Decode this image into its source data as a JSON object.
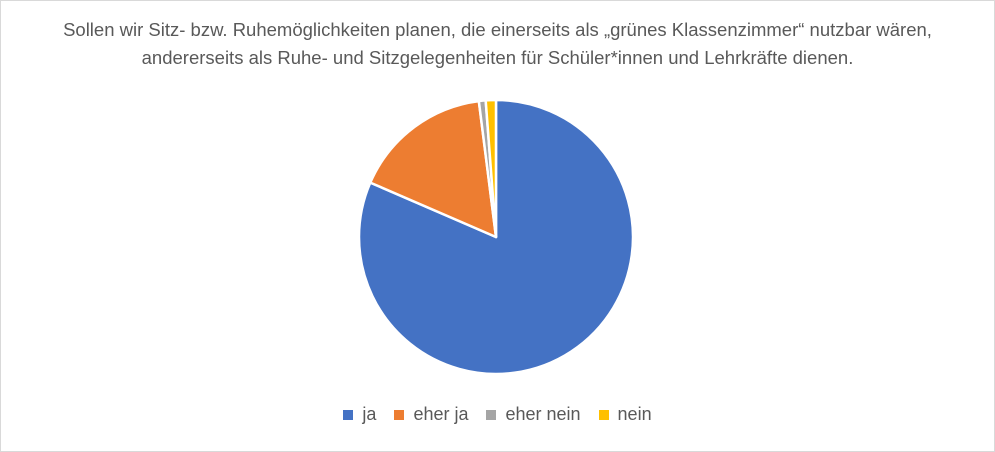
{
  "chart_data": {
    "type": "pie",
    "title_lines": [
      "Sollen wir Sitz- bzw. Ruhemöglichkeiten planen, die einerseits als „grünes Klassenzimmer“ nutzbar wären,",
      "andererseits als Ruhe- und Sitzgelegenheiten für Schüler*innen und Lehrkräfte dienen."
    ],
    "categories": [
      "ja",
      "eher ja",
      "eher nein",
      "nein"
    ],
    "values": [
      81.5,
      16.5,
      0.8,
      1.2
    ],
    "colors": [
      "#4472C4",
      "#ED7D31",
      "#A5A5A5",
      "#FFC000"
    ],
    "legend_position": "bottom"
  }
}
